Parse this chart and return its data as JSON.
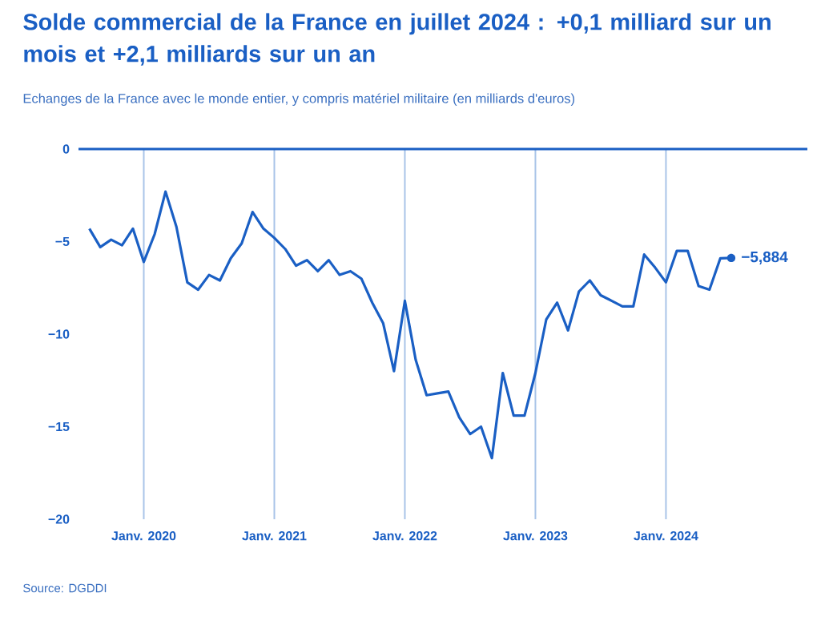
{
  "chart_data": {
    "type": "line",
    "title": "Solde commercial de la France en juillet 2024 : +0,1 milliard sur un mois et +2,1 milliards sur un an",
    "subtitle": "Echanges de la France avec le monde entier, y compris matériel militaire (en milliards d'euros)",
    "x": [
      "2019-08",
      "2019-09",
      "2019-10",
      "2019-11",
      "2019-12",
      "2020-01",
      "2020-02",
      "2020-03",
      "2020-04",
      "2020-05",
      "2020-06",
      "2020-07",
      "2020-08",
      "2020-09",
      "2020-10",
      "2020-11",
      "2020-12",
      "2021-01",
      "2021-02",
      "2021-03",
      "2021-04",
      "2021-05",
      "2021-06",
      "2021-07",
      "2021-08",
      "2021-09",
      "2021-10",
      "2021-11",
      "2021-12",
      "2022-01",
      "2022-02",
      "2022-03",
      "2022-04",
      "2022-05",
      "2022-06",
      "2022-07",
      "2022-08",
      "2022-09",
      "2022-10",
      "2022-11",
      "2022-12",
      "2023-01",
      "2023-02",
      "2023-03",
      "2023-04",
      "2023-05",
      "2023-06",
      "2023-07",
      "2023-08",
      "2023-09",
      "2023-10",
      "2023-11",
      "2023-12",
      "2024-01",
      "2024-02",
      "2024-03",
      "2024-04",
      "2024-05",
      "2024-06",
      "2024-07"
    ],
    "series": [
      {
        "color": "#1a5fc4",
        "values": [
          -4.3,
          -5.3,
          -4.9,
          -5.2,
          -4.3,
          -6.1,
          -4.6,
          -2.3,
          -4.2,
          -7.2,
          -7.6,
          -6.8,
          -7.1,
          -5.9,
          -5.1,
          -3.4,
          -4.3,
          -4.8,
          -5.4,
          -6.3,
          -6.0,
          -6.6,
          -6.0,
          -6.8,
          -6.6,
          -7.0,
          -8.3,
          -9.4,
          -12.0,
          -8.2,
          -11.4,
          -13.3,
          -13.2,
          -13.1,
          -14.5,
          -15.4,
          -15.0,
          -16.7,
          -12.1,
          -14.4,
          -14.4,
          -12.1,
          -9.2,
          -8.3,
          -9.8,
          -7.7,
          -7.1,
          -7.9,
          -8.2,
          -8.5,
          -8.5,
          -5.7,
          -6.4,
          -7.2,
          -5.5,
          -5.5,
          -7.4,
          -7.6,
          -5.9,
          -5.884
        ]
      }
    ],
    "xlim": [
      "2019-07",
      "2025-02"
    ],
    "xticks": [
      {
        "value": "2020-01",
        "label": "Janv. 2020"
      },
      {
        "value": "2021-01",
        "label": "Janv. 2021"
      },
      {
        "value": "2022-01",
        "label": "Janv. 2022"
      },
      {
        "value": "2023-01",
        "label": "Janv. 2023"
      },
      {
        "value": "2024-01",
        "label": "Janv. 2024"
      }
    ],
    "ylim": [
      -20,
      0
    ],
    "yticks": [
      {
        "value": 0,
        "label": "0"
      },
      {
        "value": -5,
        "label": "−5"
      },
      {
        "value": -10,
        "label": "−10"
      },
      {
        "value": -15,
        "label": "−15"
      },
      {
        "value": -20,
        "label": "−20"
      }
    ],
    "grid": "x",
    "ref_lines": [
      {
        "axis": "y",
        "value": 0,
        "color": "#1a5fc4"
      }
    ],
    "annotations": [
      {
        "text": "−5,884",
        "x": "2024-07",
        "y": -5.884
      },
      "Source: DGDDI"
    ]
  }
}
